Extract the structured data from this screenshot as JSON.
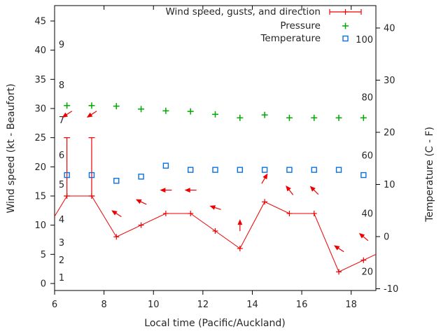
{
  "legend": {
    "items": [
      {
        "label": "Wind speed, gusts, and direction",
        "marker": "errorbar-line",
        "color": "#ee0000"
      },
      {
        "label": "Pressure",
        "marker": "plus",
        "color": "#00a800"
      },
      {
        "label": "Temperature",
        "marker": "open-square",
        "color": "#0a70e0"
      }
    ]
  },
  "chart_data": {
    "type": "line",
    "title": "",
    "xlabel": "Local time (Pacific/Auckland)",
    "ylabel": "Wind speed (kt - Beaufort)",
    "y2label": "Temperature (C - F)",
    "xlim": [
      6,
      19
    ],
    "x_ticks": [
      6,
      8,
      10,
      12,
      14,
      16,
      18
    ],
    "y_left_ticks_kt": [
      0,
      5,
      10,
      15,
      20,
      25,
      30,
      35,
      40,
      45
    ],
    "y_left_lim_kt": [
      -1.2,
      47.6
    ],
    "y_right_ticks_c": [
      -10,
      0,
      10,
      20,
      30,
      40
    ],
    "y_right_lim_c": [
      -10.3,
      44.3
    ],
    "grid": false,
    "legend_position": "top-right-inside",
    "beaufort_scale_labels": [
      {
        "label": "1",
        "kt": 1
      },
      {
        "label": "2",
        "kt": 4
      },
      {
        "label": "3",
        "kt": 7
      },
      {
        "label": "4",
        "kt": 11
      },
      {
        "label": "5",
        "kt": 17
      },
      {
        "label": "6",
        "kt": 22
      },
      {
        "label": "7",
        "kt": 28
      },
      {
        "label": "8",
        "kt": 34
      },
      {
        "label": "9",
        "kt": 41
      }
    ],
    "fahrenheit_scale_labels": [
      {
        "label": "20",
        "c": -6.7
      },
      {
        "label": "40",
        "c": 4.4
      },
      {
        "label": "60",
        "c": 15.6
      },
      {
        "label": "80",
        "c": 26.7
      },
      {
        "label": "100",
        "c": 37.8
      }
    ],
    "series": [
      {
        "name": "Wind speed, gusts, and direction",
        "type": "line+markers+gust-errorbars",
        "color": "#ee0000",
        "axis": "left-kt",
        "x": [
          6,
          6.5,
          7.5,
          8.5,
          9.5,
          10.5,
          11.5,
          12.5,
          13.5,
          14.5,
          15.5,
          16.5,
          17.5,
          18.5,
          19
        ],
        "y_kt": [
          11.5,
          15,
          15,
          8,
          10,
          12,
          12,
          9,
          6,
          14,
          12,
          12,
          2,
          4,
          5
        ],
        "gusts": [
          {
            "x": 6.5,
            "from_kt": 15,
            "to_kt": 25
          },
          {
            "x": 7.5,
            "from_kt": 15,
            "to_kt": 25
          }
        ]
      },
      {
        "name": "Pressure",
        "type": "points",
        "color": "#00a800",
        "axis": "left-kt",
        "x": [
          6.5,
          7.5,
          8.5,
          9.5,
          10.5,
          11.5,
          12.5,
          13.5,
          14.5,
          15.5,
          16.5,
          17.5,
          18.5
        ],
        "y_kt": [
          30.5,
          30.5,
          30.4,
          29.9,
          29.6,
          29.5,
          29.0,
          28.4,
          28.9,
          28.4,
          28.4,
          28.4,
          28.4
        ]
      },
      {
        "name": "Temperature",
        "type": "points",
        "color": "#0a70e0",
        "axis": "right-c",
        "x": [
          6.5,
          7.5,
          8.5,
          9.5,
          10.5,
          11.5,
          12.5,
          13.5,
          14.5,
          15.5,
          16.5,
          17.5,
          18.5
        ],
        "y_c": [
          11.8,
          11.8,
          10.7,
          11.5,
          13.6,
          12.8,
          12.8,
          12.8,
          12.8,
          12.8,
          12.8,
          12.8,
          11.8
        ]
      }
    ],
    "wind_arrows": [
      {
        "x": 6.5,
        "y_kt": 29,
        "angle_deg": 147
      },
      {
        "x": 7.5,
        "y_kt": 29,
        "angle_deg": 147
      },
      {
        "x": 8.5,
        "y_kt": 12,
        "angle_deg": -147
      },
      {
        "x": 9.5,
        "y_kt": 14,
        "angle_deg": -155
      },
      {
        "x": 10.5,
        "y_kt": 16,
        "angle_deg": 180
      },
      {
        "x": 11.5,
        "y_kt": 16,
        "angle_deg": 180
      },
      {
        "x": 12.5,
        "y_kt": 13,
        "angle_deg": -162
      },
      {
        "x": 13.5,
        "y_kt": 10,
        "angle_deg": -90
      },
      {
        "x": 14.5,
        "y_kt": 18,
        "angle_deg": -60
      },
      {
        "x": 15.5,
        "y_kt": 16,
        "angle_deg": -128
      },
      {
        "x": 16.5,
        "y_kt": 16,
        "angle_deg": -135
      },
      {
        "x": 17.5,
        "y_kt": 6,
        "angle_deg": -147
      },
      {
        "x": 18.5,
        "y_kt": 8,
        "angle_deg": -140
      }
    ]
  }
}
